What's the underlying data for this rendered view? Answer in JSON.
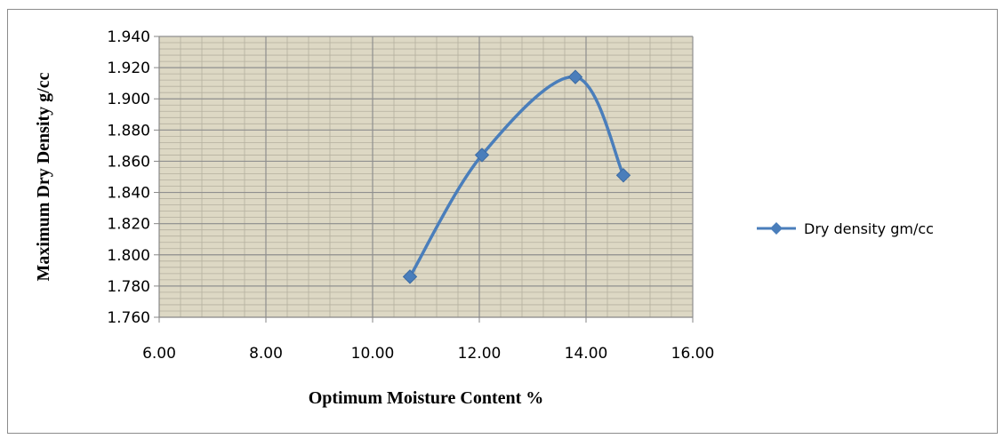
{
  "chart_data": {
    "type": "scatter",
    "title": "",
    "xlabel": "Optimum Moisture Content %",
    "ylabel": "Maximum Dry Density g/cc",
    "xlim": [
      6,
      16
    ],
    "ylim": [
      1.76,
      1.94
    ],
    "x_major_step": 2,
    "y_major_step": 0.02,
    "x_tick_labels": [
      "6.00",
      "8.00",
      "10.00",
      "12.00",
      "14.00",
      "16.00"
    ],
    "y_tick_labels": [
      "1.760",
      "1.780",
      "1.800",
      "1.820",
      "1.840",
      "1.860",
      "1.880",
      "1.900",
      "1.920",
      "1.940"
    ],
    "grid": true,
    "smooth_lines": true,
    "plot_background": "#ddd8c4",
    "grid_color": "#8f8f8f",
    "series": [
      {
        "name": "Dry density  gm/cc",
        "color": "#4a7ebb",
        "marker": "diamond",
        "x": [
          10.7,
          12.05,
          13.8,
          14.7
        ],
        "y": [
          1.786,
          1.864,
          1.914,
          1.851
        ]
      }
    ],
    "legend": {
      "position": "right"
    }
  }
}
